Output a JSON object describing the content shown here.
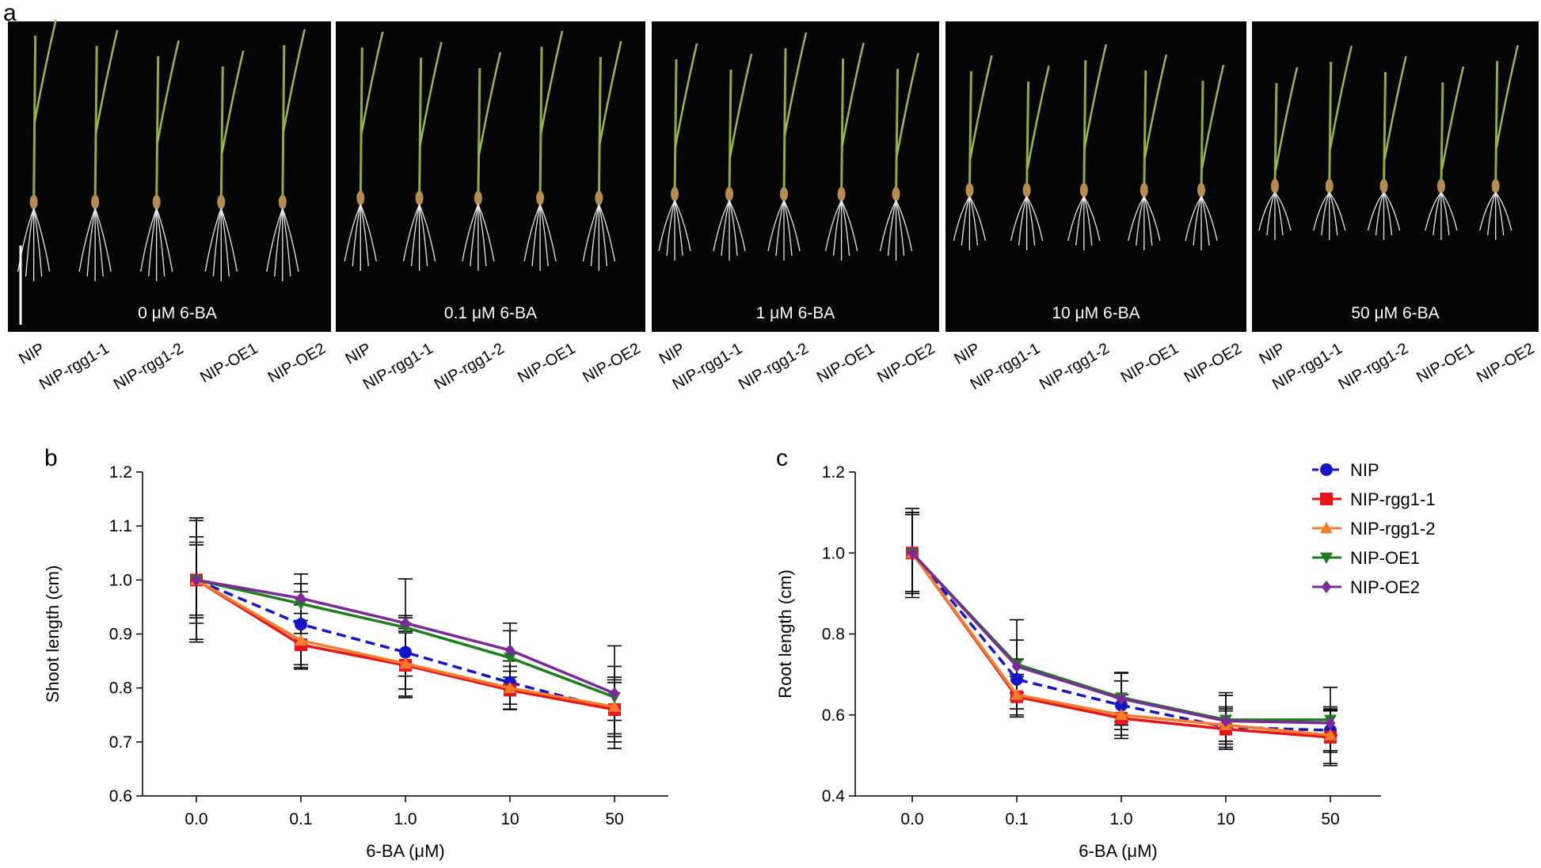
{
  "photos": {
    "panel_label": "a",
    "panels": [
      {
        "label": "0 μM 6-BA",
        "genotypes": [
          "NIP",
          "NIP-rgg1-1",
          "NIP-rgg1-2",
          "NIP-OE1",
          "NIP-OE2"
        ]
      },
      {
        "label": "0.1 μM 6-BA",
        "genotypes": [
          "NIP",
          "NIP-rgg1-1",
          "NIP-rgg1-2",
          "NIP-OE1",
          "NIP-OE2"
        ]
      },
      {
        "label": "1 μM 6-BA",
        "genotypes": [
          "NIP",
          "NIP-rgg1-1",
          "NIP-rgg1-2",
          "NIP-OE1",
          "NIP-OE2"
        ]
      },
      {
        "label": "10 μM 6-BA",
        "genotypes": [
          "NIP",
          "NIP-rgg1-1",
          "NIP-rgg1-2",
          "NIP-OE1",
          "NIP-OE2"
        ]
      },
      {
        "label": "50 μM 6-BA",
        "genotypes": [
          "NIP",
          "NIP-rgg1-1",
          "NIP-rgg1-2",
          "NIP-OE1",
          "NIP-OE2"
        ]
      }
    ]
  },
  "chart_data": [
    {
      "type": "line",
      "panel_label": "b",
      "x_label": "6-BA (μM)",
      "y_label": "Shoot length (cm)",
      "categories": [
        "0.0",
        "0.1",
        "1.0",
        "10",
        "50"
      ],
      "ylim": [
        0.6,
        1.2
      ],
      "yticks": [
        0.6,
        0.7,
        0.8,
        0.9,
        {
          "value": 1.0,
          "label": "1.0"
        },
        1.1,
        1.2
      ],
      "series": [
        {
          "name": "NIP",
          "color": "#1515c8",
          "dashed": true,
          "marker": "circle",
          "values": [
            1.0,
            0.918,
            0.866,
            0.81,
            0.76
          ],
          "errors": [
            0.07,
            0.075,
            0.068,
            0.04,
            0.06
          ]
        },
        {
          "name": "NIP-rgg1-1",
          "color": "#e8141a",
          "dashed": false,
          "marker": "square",
          "values": [
            1.0,
            0.88,
            0.842,
            0.796,
            0.76
          ],
          "errors": [
            0.065,
            0.045,
            0.06,
            0.035,
            0.05
          ]
        },
        {
          "name": "NIP-rgg1-2",
          "color": "#f57c2a",
          "dashed": false,
          "marker": "triangle-up",
          "values": [
            1.0,
            0.888,
            0.845,
            0.8,
            0.765
          ],
          "errors": [
            0.08,
            0.05,
            0.06,
            0.04,
            0.05
          ]
        },
        {
          "name": "NIP-OE1",
          "color": "#1b7f1b",
          "dashed": false,
          "marker": "triangle-down",
          "values": [
            1.0,
            0.956,
            0.912,
            0.856,
            0.783
          ],
          "errors": [
            0.115,
            0.055,
            0.09,
            0.05,
            0.095
          ]
        },
        {
          "name": "NIP-OE2",
          "color": "#7b2a9b",
          "dashed": false,
          "marker": "diamond",
          "values": [
            1.0,
            0.966,
            0.92,
            0.87,
            0.79
          ],
          "errors": [
            0.11,
            0.012,
            0.01,
            0.05,
            0.05
          ]
        }
      ]
    },
    {
      "type": "line",
      "panel_label": "c",
      "x_label": "6-BA (μM)",
      "y_label": "Root length (cm)",
      "categories": [
        "0.0",
        "0.1",
        "1.0",
        "10",
        "50"
      ],
      "ylim": [
        0.4,
        1.2
      ],
      "yticks": [
        0.4,
        0.6,
        0.8,
        {
          "value": 1.0,
          "label": "1.0"
        },
        1.2
      ],
      "legend": "top-right",
      "series": [
        {
          "name": "NIP",
          "color": "#1515c8",
          "dashed": true,
          "marker": "circle",
          "values": [
            1.0,
            0.688,
            0.624,
            0.57,
            0.562
          ],
          "errors": [
            0.1,
            0.05,
            0.06,
            0.05,
            0.05
          ]
        },
        {
          "name": "NIP-rgg1-1",
          "color": "#e8141a",
          "dashed": false,
          "marker": "square",
          "values": [
            1.0,
            0.645,
            0.592,
            0.565,
            0.545
          ],
          "errors": [
            0.11,
            0.05,
            0.05,
            0.045,
            0.07
          ]
        },
        {
          "name": "NIP-rgg1-2",
          "color": "#f57c2a",
          "dashed": false,
          "marker": "triangle-up",
          "values": [
            1.0,
            0.65,
            0.6,
            0.575,
            0.55
          ],
          "errors": [
            0.1,
            0.05,
            0.05,
            0.04,
            0.07
          ]
        },
        {
          "name": "NIP-OE1",
          "color": "#1b7f1b",
          "dashed": false,
          "marker": "triangle-down",
          "values": [
            1.0,
            0.725,
            0.643,
            0.588,
            0.588
          ],
          "errors": [
            0.095,
            0.11,
            0.06,
            0.06,
            0.08
          ]
        },
        {
          "name": "NIP-OE2",
          "color": "#7b2a9b",
          "dashed": false,
          "marker": "diamond",
          "values": [
            1.0,
            0.72,
            0.64,
            0.585,
            0.58
          ],
          "errors": [
            0.1,
            0.065,
            0.065,
            0.07,
            0.03
          ]
        }
      ]
    }
  ]
}
